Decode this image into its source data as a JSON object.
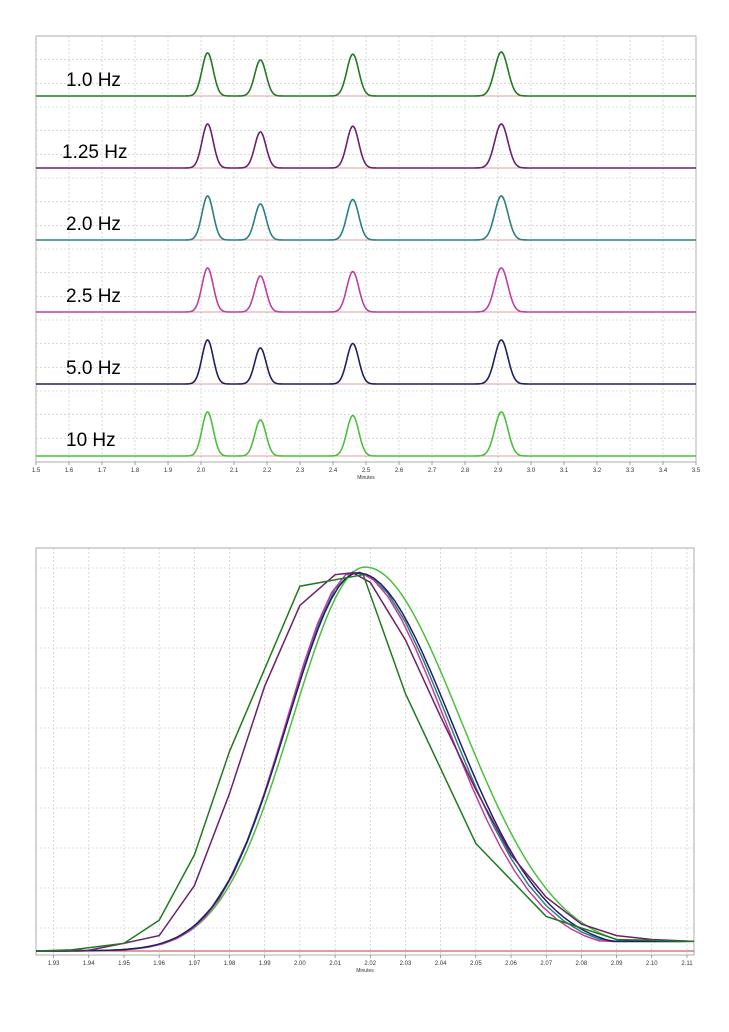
{
  "colors": {
    "hz_1_0": "#1f7a1f",
    "hz_1_25": "#6b1f6e",
    "hz_2_0": "#2a8080",
    "hz_2_5": "#bf3fa0",
    "hz_5_0": "#1f1f66",
    "hz_10": "#4cbf3c",
    "baseline_red": "#c23b3b",
    "grid": "#bfbfbf"
  },
  "chart_data": [
    {
      "type": "line",
      "title": "",
      "xlabel": "Minutes",
      "ylabel": "",
      "xlim": [
        1.5,
        3.5
      ],
      "x_ticks": [
        "1.5",
        "1.6",
        "1.7",
        "1.8",
        "1.9",
        "2.0",
        "2.1",
        "2.2",
        "2.3",
        "2.4",
        "2.5",
        "2.6",
        "2.7",
        "2.8",
        "2.9",
        "3.0",
        "3.1",
        "3.2",
        "3.3",
        "3.4",
        "3.5"
      ],
      "grid": true,
      "peak_times": [
        2.02,
        2.18,
        2.46,
        2.91
      ],
      "series": [
        {
          "name": "1.0 Hz",
          "peak_heights": [
            0.98,
            0.82,
            0.95,
            1.0
          ]
        },
        {
          "name": "1.25 Hz",
          "peak_heights": [
            1.0,
            0.82,
            0.95,
            1.0
          ]
        },
        {
          "name": "2.0 Hz",
          "peak_heights": [
            1.0,
            0.82,
            0.92,
            1.0
          ]
        },
        {
          "name": "2.5 Hz",
          "peak_heights": [
            1.0,
            0.82,
            0.92,
            1.0
          ]
        },
        {
          "name": "5.0 Hz",
          "peak_heights": [
            1.0,
            0.82,
            0.92,
            1.0
          ]
        },
        {
          "name": "10 Hz",
          "peak_heights": [
            1.0,
            0.82,
            0.92,
            1.0
          ]
        }
      ]
    },
    {
      "type": "line",
      "title": "",
      "xlabel": "Minutes",
      "ylabel": "",
      "xlim": [
        1.925,
        2.112
      ],
      "x_ticks": [
        "1.93",
        "1.94",
        "1.95",
        "1.96",
        "1.97",
        "1.98",
        "1.99",
        "2.00",
        "2.01",
        "2.02",
        "2.03",
        "2.04",
        "2.05",
        "2.06",
        "2.07",
        "2.08",
        "2.09",
        "2.10",
        "2.11"
      ],
      "grid": true,
      "series": [
        {
          "name": "1.0 Hz",
          "x": [
            1.925,
            1.935,
            1.95,
            1.96,
            1.97,
            1.98,
            2.0,
            2.018,
            2.03,
            2.05,
            2.07,
            2.09,
            2.112
          ],
          "y": [
            0.0,
            0.003,
            0.02,
            0.08,
            0.25,
            0.52,
            0.95,
            0.98,
            0.67,
            0.28,
            0.09,
            0.03,
            0.025
          ]
        },
        {
          "name": "1.25 Hz",
          "x": [
            1.925,
            1.94,
            1.95,
            1.96,
            1.97,
            1.98,
            1.99,
            2.0,
            2.01,
            2.015,
            2.02,
            2.03,
            2.04,
            2.05,
            2.06,
            2.07,
            2.08,
            2.09,
            2.1,
            2.112
          ],
          "y": [
            0.0,
            0.002,
            0.02,
            0.04,
            0.17,
            0.41,
            0.69,
            0.9,
            0.98,
            0.985,
            0.96,
            0.81,
            0.61,
            0.42,
            0.25,
            0.14,
            0.07,
            0.04,
            0.03,
            0.025
          ]
        },
        {
          "name": "2.0 Hz"
        },
        {
          "name": "2.5 Hz"
        },
        {
          "name": "5.0 Hz"
        },
        {
          "name": "10 Hz"
        }
      ]
    }
  ]
}
